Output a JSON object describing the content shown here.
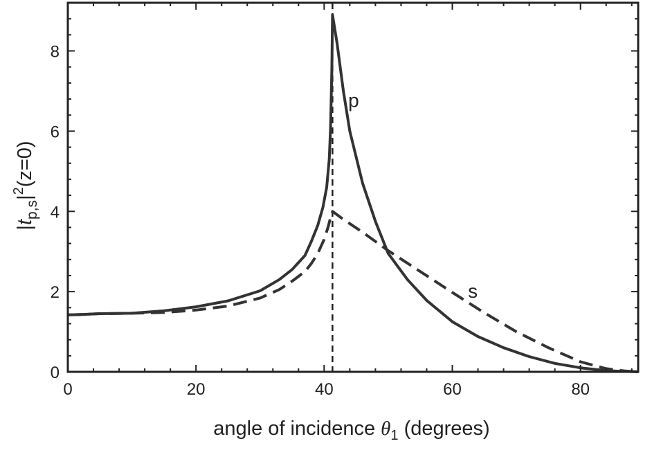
{
  "chart_data": {
    "type": "line",
    "xlabel": "angle of incidence θ₁ (degrees)",
    "xlabel_parts": {
      "pre": "angle of incidence ",
      "theta": "θ",
      "sub": "1",
      "post": " (degrees)"
    },
    "ylabel_parts": {
      "bar1": "|",
      "t": "t",
      "sub": "p,s",
      "bar2": "|",
      "sup": "2",
      "rest": "(z=0)"
    },
    "xlim": [
      0,
      89
    ],
    "ylim": [
      0,
      9.2
    ],
    "xticks": [
      0,
      20,
      40,
      60,
      80
    ],
    "yticks": [
      0,
      2,
      4,
      6,
      8
    ],
    "xtick_labels": [
      "0",
      "20",
      "40",
      "60",
      "80"
    ],
    "ytick_labels": [
      "0",
      "2",
      "4",
      "6",
      "8"
    ],
    "critical_angle": 41.3,
    "series": [
      {
        "name": "p",
        "style": "solid",
        "x": [
          0,
          2,
          5,
          10,
          15,
          20,
          25,
          30,
          33,
          35,
          37,
          38,
          39,
          39.8,
          40.4,
          40.8,
          41.0,
          41.1,
          41.2,
          41.3,
          42,
          43,
          44,
          46,
          48,
          50,
          53,
          56,
          60,
          64,
          68,
          72,
          76,
          80,
          84,
          87,
          89
        ],
        "y": [
          1.42,
          1.43,
          1.45,
          1.46,
          1.52,
          1.62,
          1.77,
          2.02,
          2.3,
          2.55,
          2.9,
          3.25,
          3.65,
          4.1,
          4.6,
          5.3,
          6.1,
          6.8,
          7.5,
          8.9,
          8.2,
          7.0,
          6.0,
          4.7,
          3.75,
          2.95,
          2.3,
          1.78,
          1.25,
          0.88,
          0.6,
          0.38,
          0.21,
          0.1,
          0.03,
          0.01,
          0.0
        ],
        "label_at": [
          44.6,
          6.6
        ]
      },
      {
        "name": "s",
        "style": "dashed",
        "x": [
          0,
          2,
          5,
          10,
          15,
          20,
          25,
          30,
          33,
          35,
          37,
          38,
          39,
          40,
          40.6,
          41.0,
          41.3,
          43,
          46,
          50,
          55,
          60,
          65,
          70,
          75,
          80,
          84,
          87,
          89
        ],
        "y": [
          1.42,
          1.43,
          1.45,
          1.46,
          1.48,
          1.54,
          1.64,
          1.84,
          2.05,
          2.26,
          2.5,
          2.7,
          2.95,
          3.3,
          3.6,
          3.85,
          4.0,
          3.8,
          3.48,
          3.02,
          2.5,
          1.98,
          1.47,
          1.0,
          0.6,
          0.25,
          0.08,
          0.02,
          0.0
        ],
        "label_at": [
          63.2,
          1.85
        ]
      }
    ]
  }
}
